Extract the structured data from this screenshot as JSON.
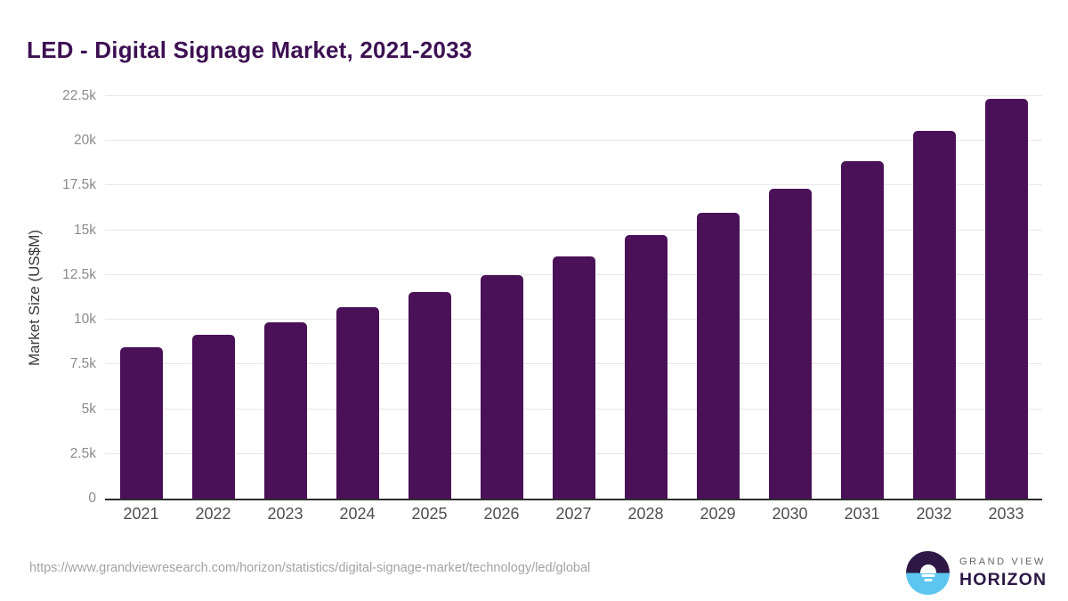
{
  "title": "LED - Digital Signage Market, 2021-2033",
  "chart_data": {
    "type": "bar",
    "title": "LED - Digital Signage Market, 2021-2033",
    "categories": [
      "2021",
      "2022",
      "2023",
      "2024",
      "2025",
      "2026",
      "2027",
      "2028",
      "2029",
      "2030",
      "2031",
      "2032",
      "2033"
    ],
    "values": [
      8450,
      9150,
      9880,
      10700,
      11560,
      12500,
      13540,
      14750,
      16000,
      17320,
      18870,
      20540,
      22350
    ],
    "xlabel": "",
    "ylabel": "Market Size (US$M)",
    "ylim": [
      0,
      22500
    ],
    "yticks": [
      0,
      2500,
      5000,
      7500,
      10000,
      12500,
      15000,
      17500,
      20000,
      22500
    ],
    "ytick_labels": [
      "0",
      "2.5k",
      "5k",
      "7.5k",
      "10k",
      "12.5k",
      "15k",
      "17.5k",
      "20k",
      "22.5k"
    ],
    "grid": true,
    "legend": false
  },
  "colors": {
    "bar": "#4a1158",
    "title": "#3d1053",
    "grid": "#e7e7e7",
    "axis_line": "#2e2e2e",
    "y_tick": "#8a8a8a",
    "x_tick": "#4f4f4f",
    "url": "#a3a3a3",
    "logo_dark": "#2d1846",
    "logo_blue": "#5cc6f1"
  },
  "footer": {
    "source_url": "https://www.grandviewresearch.com/horizon/statistics/digital-signage-market/technology/led/global",
    "brand": {
      "line1": "GRAND VIEW",
      "line2": "HORIZON"
    }
  }
}
